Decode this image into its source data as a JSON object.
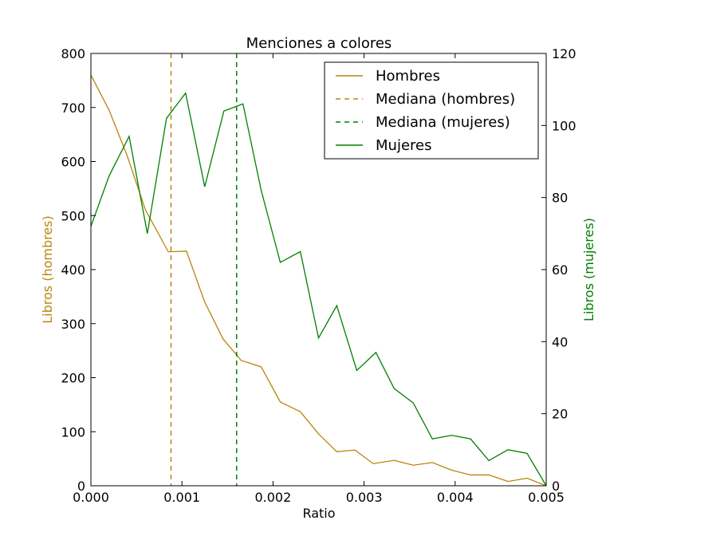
{
  "chart_data": {
    "type": "line",
    "title": "Menciones a colores",
    "xlabel": "Ratio",
    "ylabel_left": "Libros (hombres)",
    "ylabel_right": "Libros (mujeres)",
    "xlim": [
      0,
      0.005
    ],
    "ylim_left": [
      0,
      800
    ],
    "ylim_right": [
      0,
      120
    ],
    "x_ticks": [
      "0.000",
      "0.001",
      "0.002",
      "0.003",
      "0.004",
      "0.005"
    ],
    "y_left_ticks": [
      "0",
      "100",
      "200",
      "300",
      "400",
      "500",
      "600",
      "700",
      "800"
    ],
    "y_right_ticks": [
      "0",
      "20",
      "40",
      "60",
      "80",
      "100",
      "120"
    ],
    "legend_position": "top-right",
    "colors": {
      "hombres": "#b8860b",
      "mujeres": "#008000",
      "frame": "#000000"
    },
    "series": [
      {
        "name": "Hombres",
        "axis": "left",
        "style": "solid",
        "color": "#b8860b",
        "x": [
          0.0,
          0.0002,
          0.0004,
          0.0006,
          0.00085,
          0.00105,
          0.00125,
          0.00145,
          0.00165,
          0.00187,
          0.00208,
          0.0023,
          0.0025,
          0.0027,
          0.0029,
          0.0031,
          0.00333,
          0.00354,
          0.00375,
          0.00396,
          0.00417,
          0.00437,
          0.00458,
          0.00479,
          0.005
        ],
        "y": [
          760,
          695,
          610,
          510,
          433,
          434,
          340,
          272,
          232,
          220,
          155,
          137,
          96,
          63,
          66,
          41,
          47,
          38,
          43,
          29,
          20,
          20,
          8,
          14,
          0
        ]
      },
      {
        "name": "Mediana (hombres)",
        "axis": "left",
        "style": "dashed",
        "color": "#b8860b",
        "x": 0.00088
      },
      {
        "name": "Mediana (mujeres)",
        "axis": "left",
        "style": "dashed",
        "color": "#008000",
        "x": 0.0016
      },
      {
        "name": "Mujeres",
        "axis": "right",
        "style": "solid",
        "color": "#008000",
        "x": [
          0.0,
          0.0002,
          0.00042,
          0.00062,
          0.00083,
          0.00104,
          0.00125,
          0.00146,
          0.00167,
          0.00187,
          0.00208,
          0.0023,
          0.0025,
          0.0027,
          0.00292,
          0.00313,
          0.00333,
          0.00354,
          0.00375,
          0.00396,
          0.00417,
          0.00437,
          0.00458,
          0.00479,
          0.005
        ],
        "y": [
          72,
          86,
          97,
          70,
          102,
          109,
          83,
          104,
          106,
          82,
          62,
          65,
          41,
          50,
          32,
          37,
          27,
          23,
          13,
          14,
          13,
          7,
          10,
          9,
          0
        ]
      }
    ]
  }
}
